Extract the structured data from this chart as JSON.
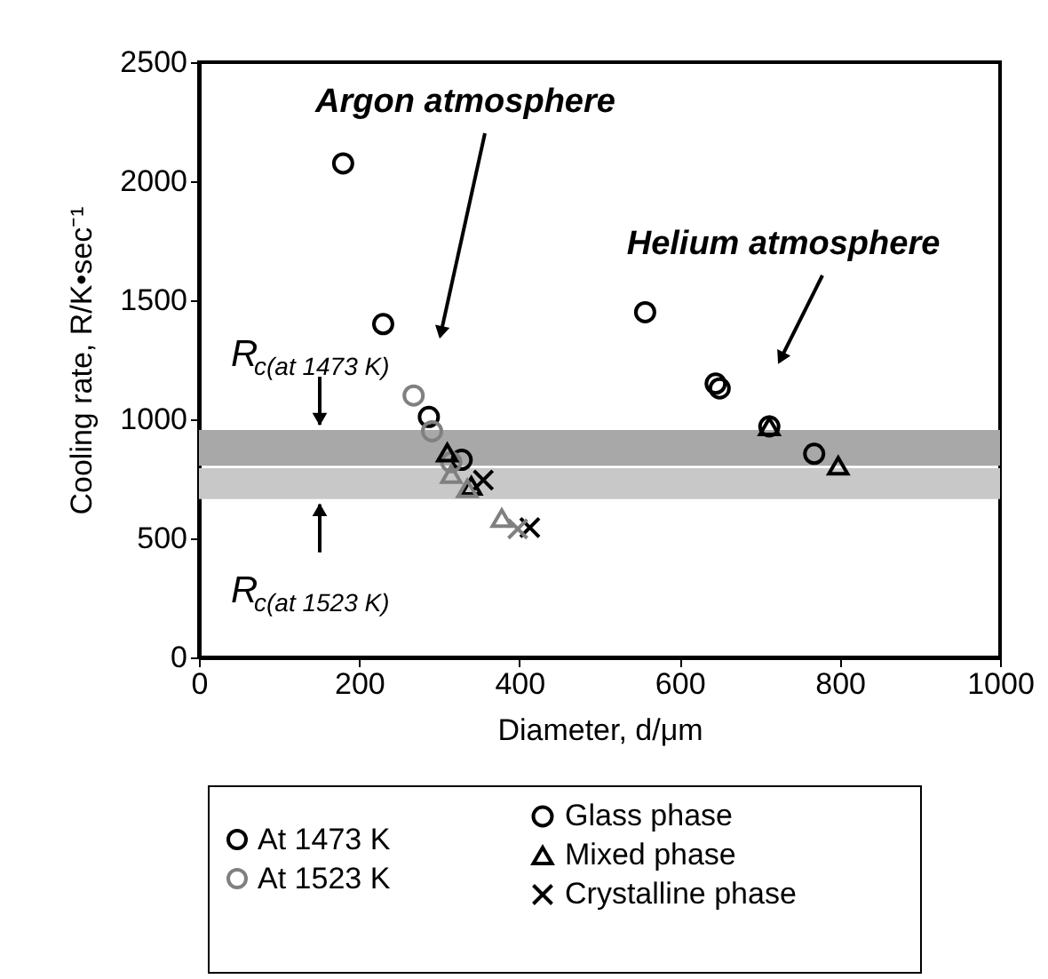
{
  "chart_data": {
    "type": "scatter",
    "xlabel": "Diameter, d/μm",
    "ylabel": "Cooling rate, R/K•sec⁻¹",
    "xlim": [
      0,
      1000
    ],
    "xticks": [
      0,
      200,
      400,
      600,
      800,
      {
        "value": 1000,
        "label": "1000"
      }
    ],
    "ylim": [
      0,
      2500
    ],
    "yticks": [
      0,
      500,
      {
        "value": 1000,
        "label": "1000"
      },
      {
        "value": 1500,
        "label": "1500"
      },
      {
        "value": 2000,
        "label": "2000"
      },
      {
        "value": 2500,
        "label": "2500"
      }
    ],
    "grid": false,
    "legend": "bottom",
    "series": [
      {
        "name": "Glass phase",
        "marker": "circle",
        "x": [
          180,
          230,
          557,
          287,
          328,
          645,
          650,
          712,
          768,
          268,
          291,
          315
        ],
        "values": [
          2075,
          1400,
          1450,
          1010,
          830,
          1150,
          1130,
          970,
          855,
          1100,
          950,
          820
        ],
        "colors": [
          "#000000",
          "#000000",
          "#000000",
          "#000000",
          "#000000",
          "#000000",
          "#000000",
          "#000000",
          "#000000",
          "#808080",
          "#808080",
          "#808080"
        ]
      },
      {
        "name": "Mixed phase",
        "marker": "triangle",
        "x": [
          310,
          340,
          712,
          798,
          315,
          335,
          378
        ],
        "values": [
          860,
          720,
          970,
          805,
          770,
          710,
          585
        ],
        "colors": [
          "#000000",
          "#000000",
          "#000000",
          "#000000",
          "#808080",
          "#808080",
          "#808080"
        ]
      },
      {
        "name": "Crystalline phase",
        "marker": "cross",
        "x": [
          355,
          413,
          398
        ],
        "values": [
          745,
          545,
          540
        ],
        "colors": [
          "#000000",
          "#000000",
          "#808080"
        ]
      }
    ],
    "bands": [
      {
        "axis": "y",
        "from": 805,
        "to": 955,
        "label": "R$_{c(at 1473 K)}$",
        "color": "#a8a8a8"
      },
      {
        "axis": "y",
        "from": 665,
        "to": 795,
        "label": "R$_{c(at 1523 K)}$",
        "color": "#c8c8c8"
      }
    ],
    "annotations": [
      "Argon atmosphere",
      "Helium atmosphere",
      "At 1473 K",
      "At 1523 K"
    ]
  }
}
